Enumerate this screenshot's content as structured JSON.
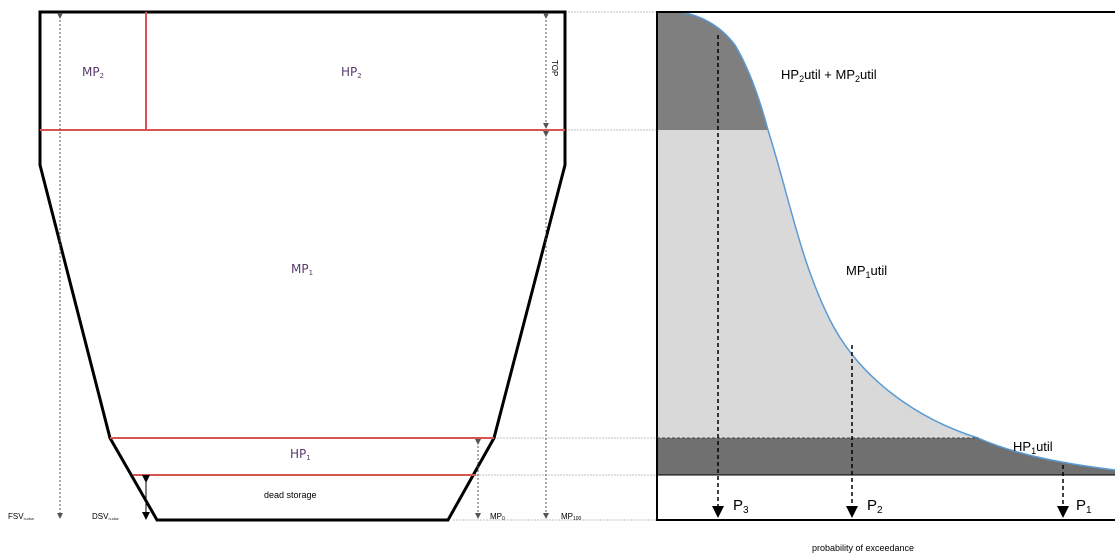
{
  "reservoir": {
    "mp2_label": "MP",
    "mp2_sub": "2",
    "hp2_label": "HP",
    "hp2_sub": "2",
    "mp1_label": "MP",
    "mp1_sub": "1",
    "hp1_label": "HP",
    "hp1_sub": "1",
    "dead_storage": "dead storage",
    "top_label": "TOP",
    "fsv_label": "FSV",
    "fsv_sub": "n-cha",
    "dsv_label": "DSV",
    "dsv_sub": "n-cha",
    "mp0_label": "MP",
    "mp0_sub": "0",
    "mp100_label": "MP",
    "mp100_sub": "100"
  },
  "curve": {
    "hp2mp2_a": "HP",
    "hp2mp2_a_sub": "2",
    "hp2mp2_b": "util + MP",
    "hp2mp2_b_sub": "2",
    "hp2mp2_c": "util",
    "mp1util_a": "MP",
    "mp1util_sub": "1",
    "mp1util_b": "util",
    "hp1util_a": "HP",
    "hp1util_sub": "1",
    "hp1util_b": "util",
    "p3": "P",
    "p3_sub": "3",
    "p2": "P",
    "p2_sub": "2",
    "p1": "P",
    "p1_sub": "1",
    "xlabel": "probability of exceedance"
  },
  "colors": {
    "outline": "#000000",
    "red_line": "#d9534f",
    "dark_fill": "#7f7f7f",
    "light_fill": "#d9d9d9",
    "curve_line": "#5b9bd5",
    "guide": "#bfbfbf"
  }
}
